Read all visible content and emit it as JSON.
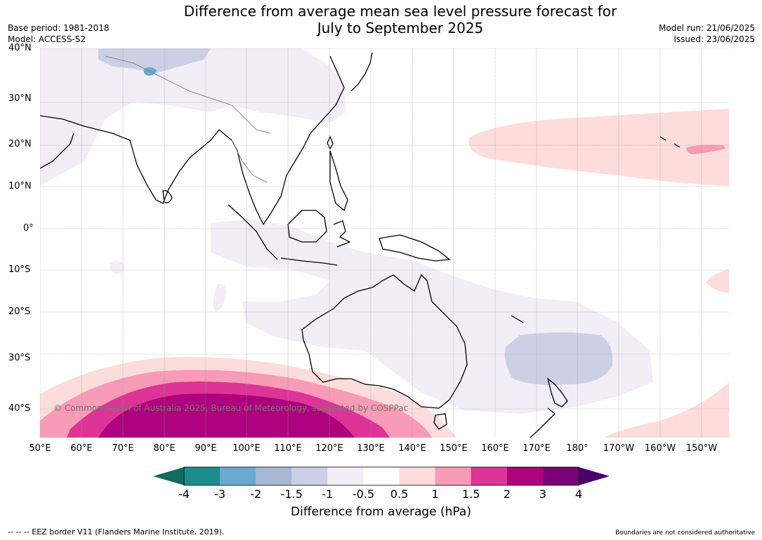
{
  "title": {
    "line1": "Difference from average mean sea level pressure forecast for",
    "line2": "July to September 2025"
  },
  "meta_left": {
    "base_period": "Base period: 1981-2018",
    "model": "Model: ACCESS-S2"
  },
  "meta_right": {
    "model_run": "Model run: 21/06/2025",
    "issued": "Issued: 23/06/2025"
  },
  "map": {
    "lat_labels": [
      "40°N",
      "30°N",
      "20°N",
      "10°N",
      "0°",
      "10°S",
      "20°S",
      "30°S",
      "40°S"
    ],
    "lon_labels": [
      "50°E",
      "60°E",
      "70°E",
      "80°E",
      "90°E",
      "100°E",
      "110°E",
      "120°E",
      "130°E",
      "140°E",
      "150°E",
      "160°E",
      "170°E",
      "180°",
      "170°W",
      "160°W",
      "150°W"
    ],
    "copyright": "© Commonwealth of Australia 2025, Bureau of Meteorology, supported by COSPPac"
  },
  "colorbar": {
    "ticks": [
      "-4",
      "-3",
      "-2",
      "-1.5",
      "-1",
      "-0.5",
      "0.5",
      "1",
      "1.5",
      "2",
      "3",
      "4"
    ],
    "colors": [
      "#1b8c8c",
      "#6aa9d0",
      "#a7b9d5",
      "#cdd0e5",
      "#f1eef6",
      "#ffffff",
      "#fddcdc",
      "#f79bb6",
      "#dd3497",
      "#ae017e",
      "#7a0177"
    ],
    "under_color": "#0e6d5f",
    "over_color": "#49006a",
    "label": "Difference from average (hPa)"
  },
  "footer": {
    "left": "--  --  -- EEZ border V11 (Flanders Marine Institute, 2019).",
    "right": "Boundaries are not considered authoritative"
  }
}
